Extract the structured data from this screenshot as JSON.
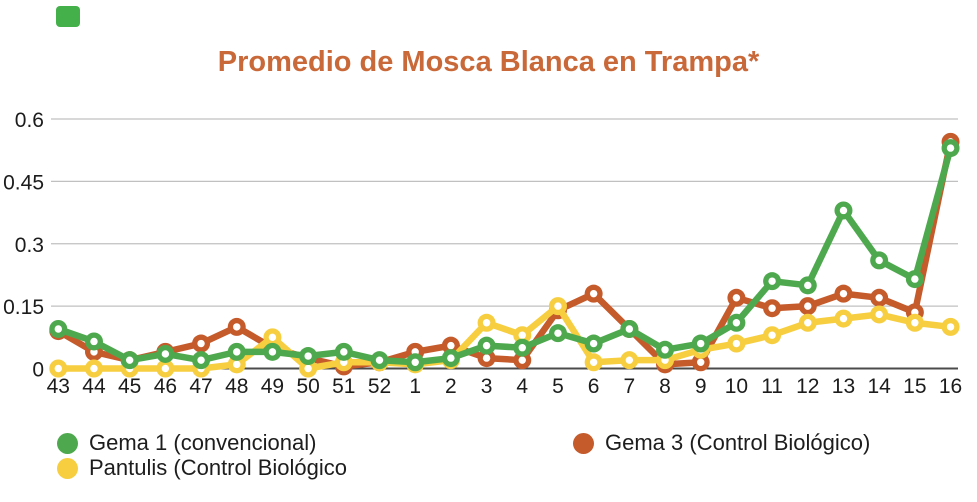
{
  "brand_mark": {
    "color": "#43B04A"
  },
  "title": {
    "text": "Promedio de Mosca Blanca en Trampa*",
    "color": "#C96939"
  },
  "chart_data": {
    "type": "line",
    "title": "Promedio de Mosca Blanca en Trampa*",
    "x_axis": {
      "categories": [
        "43",
        "44",
        "45",
        "46",
        "47",
        "48",
        "49",
        "50",
        "51",
        "52",
        "1",
        "2",
        "3",
        "4",
        "5",
        "6",
        "7",
        "8",
        "9",
        "10",
        "11",
        "12",
        "13",
        "14",
        "15",
        "16"
      ]
    },
    "y_axis": {
      "range": [
        0,
        0.6
      ],
      "ticks": [
        0,
        0.15,
        0.3,
        0.45,
        0.6
      ],
      "tick_labels": [
        "0",
        "0.15",
        "0.3",
        "0.45",
        "0.6"
      ]
    },
    "grid": true,
    "legend_position": "bottom",
    "series": [
      {
        "name": "Gema 1 (convencional)",
        "color": "#4EA94E",
        "values": [
          0.095,
          0.065,
          0.02,
          0.035,
          0.02,
          0.04,
          0.04,
          0.03,
          0.04,
          0.02,
          0.015,
          0.025,
          0.055,
          0.05,
          0.085,
          0.06,
          0.095,
          0.045,
          0.06,
          0.11,
          0.21,
          0.2,
          0.38,
          0.26,
          0.215,
          0.53
        ]
      },
      {
        "name": "Pantulis (Control Biológico",
        "color": "#F6CE3F",
        "values": [
          0,
          0,
          0,
          0,
          0,
          0.01,
          0.075,
          0,
          0.015,
          0.015,
          0.01,
          0.02,
          0.11,
          0.08,
          0.15,
          0.015,
          0.02,
          0.02,
          0.045,
          0.06,
          0.08,
          0.11,
          0.12,
          0.13,
          0.11,
          0.1
        ]
      },
      {
        "name": "Gema 3 (Control Biológico)",
        "color": "#C55A2B",
        "values": [
          0.09,
          0.04,
          0.02,
          0.04,
          0.06,
          0.1,
          0.05,
          0.025,
          0.005,
          0.015,
          0.04,
          0.055,
          0.025,
          0.02,
          0.14,
          0.18,
          0.095,
          0.01,
          0.015,
          0.17,
          0.145,
          0.15,
          0.18,
          0.17,
          0.135,
          0.545
        ]
      }
    ]
  }
}
